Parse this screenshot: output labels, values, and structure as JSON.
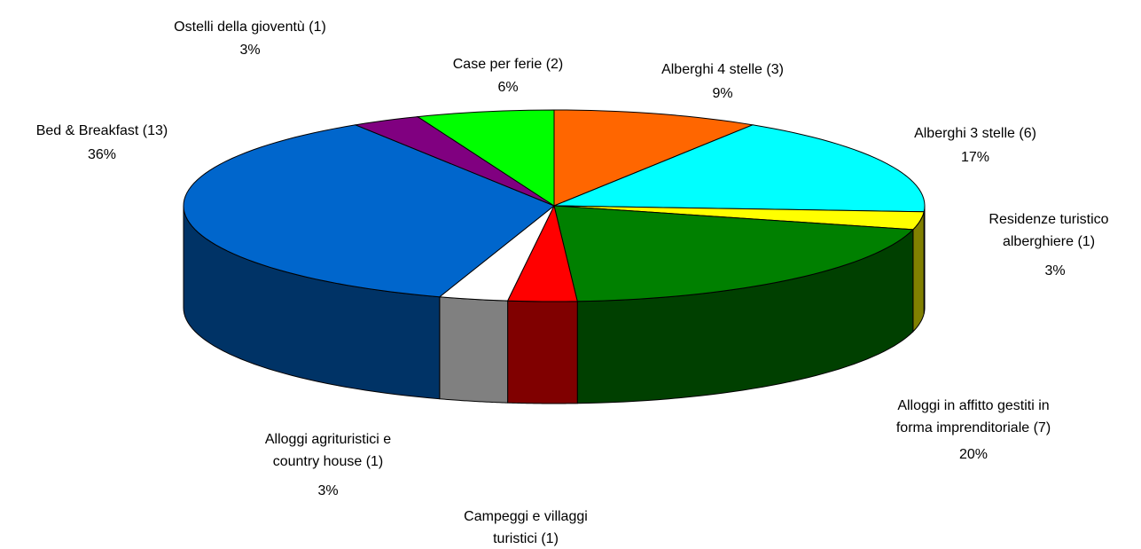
{
  "chart_data": {
    "type": "pie",
    "categories": [
      "Alberghi 4 stelle (3)",
      "Alberghi 3 stelle (6)",
      "Residenze turistico alberghiere (1)",
      "Alloggi in affitto gestiti in forma imprenditoriale (7)",
      "Campeggi e villaggi turistici (1)",
      "Alloggi agrituristici e country house (1)",
      "Bed & Breakfast (13)",
      "Ostelli della gioventù (1)",
      "Case per ferie (2)"
    ],
    "values": [
      9,
      17,
      3,
      20,
      3,
      3,
      36,
      3,
      6
    ],
    "value_labels": [
      "9%",
      "17%",
      "3%",
      "20%",
      null,
      "3%",
      "36%",
      "3%",
      "6%"
    ],
    "colors": [
      "#ff6600",
      "#00ffff",
      "#ffff00",
      "#008000",
      "#ff0000",
      "#ffffff",
      "#0066cc",
      "#800080",
      "#00ff00"
    ]
  }
}
